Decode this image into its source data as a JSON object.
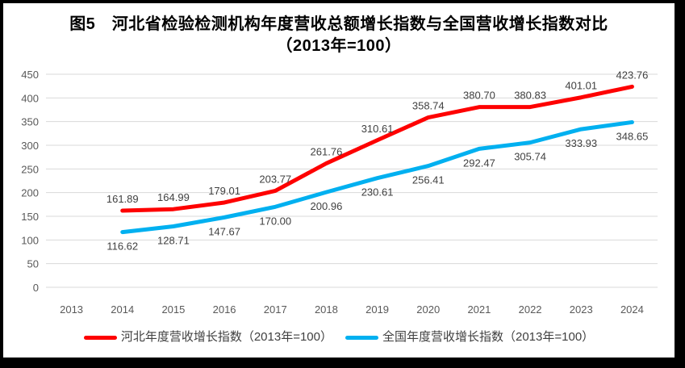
{
  "title": {
    "line1": "图5　河北省检验检测机构年度营收总额增长指数与全国营收增长指数对比",
    "line2": "（2013年=100）"
  },
  "colors": {
    "hebei_line": "#fe0000",
    "national_line": "#00b0f0",
    "gridline": "#d9d9d9",
    "axis_tick_text": "#595959",
    "data_label_text": "#404040",
    "title_text": "#000000",
    "frame_border": "#000000"
  },
  "chart_data": {
    "type": "line",
    "title": "图5　河北省检验检测机构年度营收总额增长指数与全国营收增长指数对比（2013年=100）",
    "categories": [
      "2013",
      "2014",
      "2015",
      "2016",
      "2017",
      "2018",
      "2019",
      "2020",
      "2021",
      "2022",
      "2023",
      "2024"
    ],
    "series": [
      {
        "name": "河北年度营收增长指数（2013年=100）",
        "color": "#fe0000",
        "start_index": 1,
        "label_position": "above",
        "values": [
          161.89,
          164.99,
          179.01,
          203.77,
          261.76,
          310.61,
          358.74,
          380.7,
          380.83,
          401.01,
          423.76
        ]
      },
      {
        "name": "全国年度营收增长指数（2013年=100）",
        "color": "#00b0f0",
        "start_index": 1,
        "label_position": "below",
        "values": [
          116.62,
          128.71,
          147.67,
          170.0,
          200.96,
          230.61,
          256.41,
          292.47,
          305.74,
          333.93,
          348.65
        ]
      }
    ],
    "ylim": [
      0,
      450
    ],
    "ytick_step": 50,
    "label_decimals": 2,
    "grid": true,
    "legend_position": "bottom",
    "xlabel": "",
    "ylabel": ""
  }
}
